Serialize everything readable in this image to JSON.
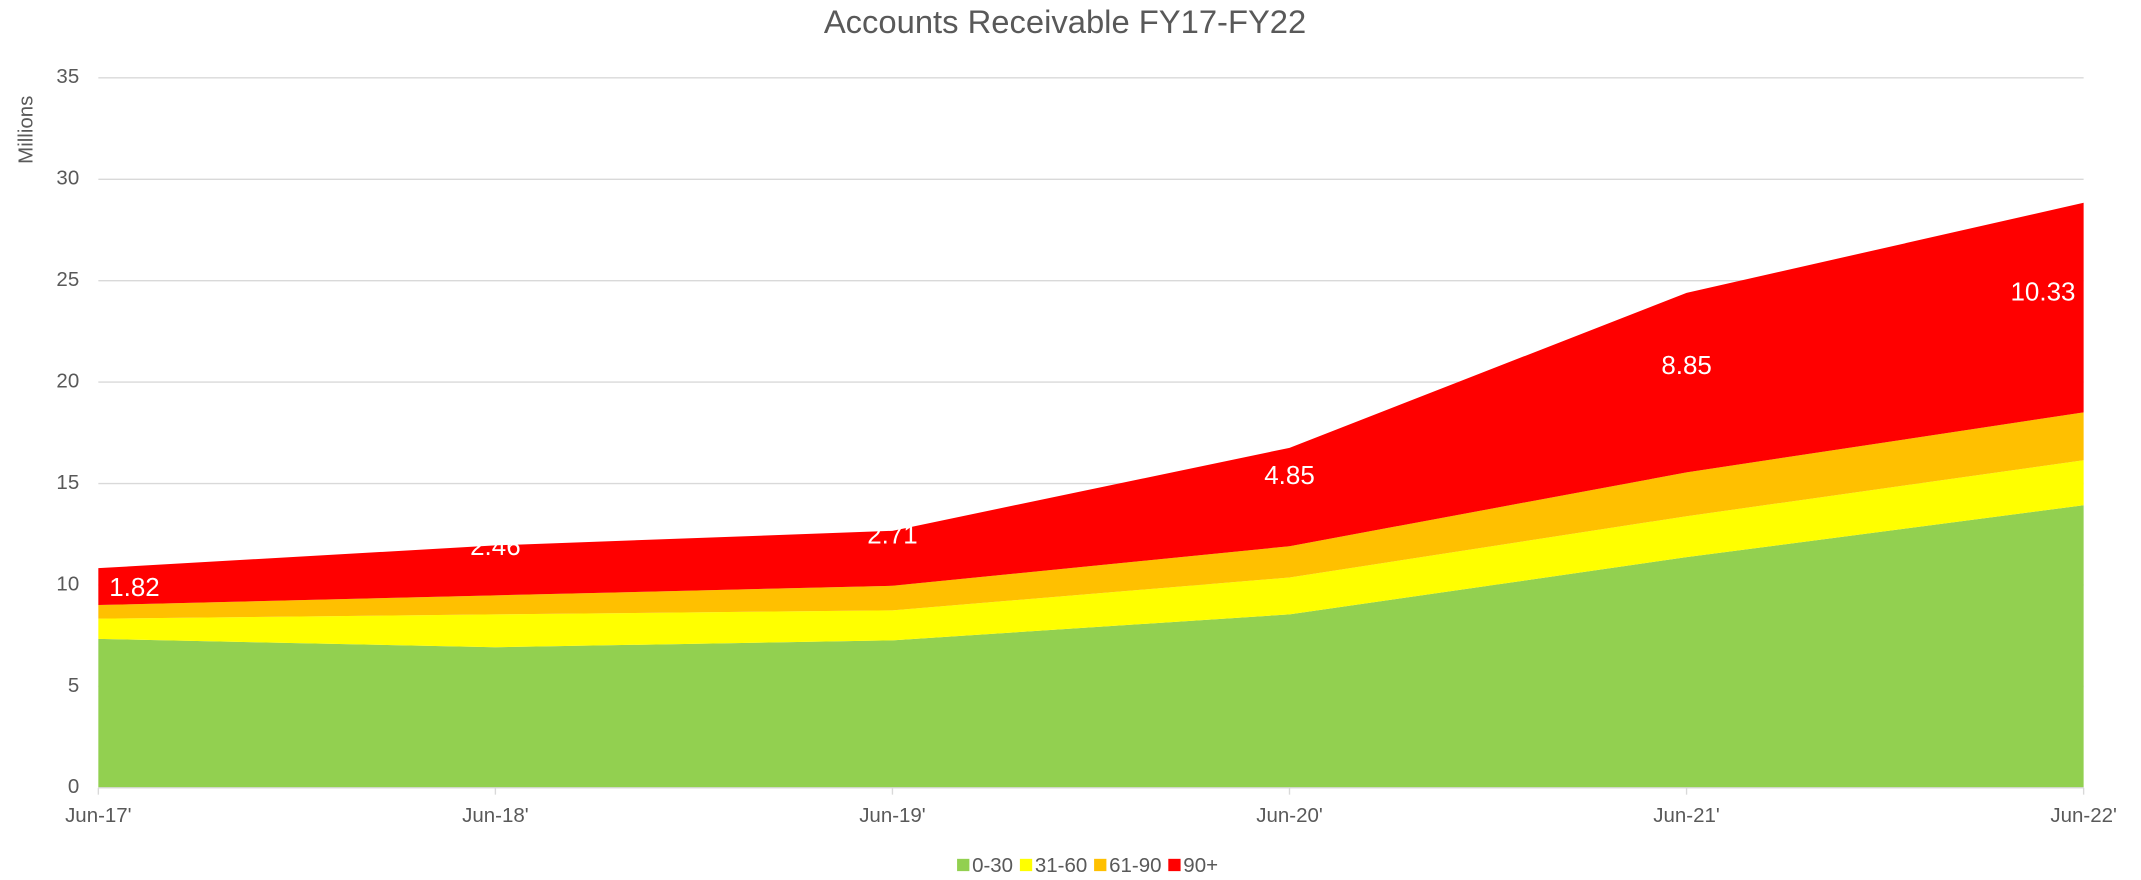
{
  "chart_data": {
    "type": "stacked_area",
    "title": "Accounts Receivable FY17-FY22",
    "y_label": "Millions",
    "categories": [
      "Jun-17'",
      "Jun-18'",
      "Jun-19'",
      "Jun-20'",
      "Jun-21'",
      "Jun-22'"
    ],
    "series": [
      {
        "name": "0-30",
        "color": "#92d050",
        "values": [
          7.34,
          6.93,
          7.27,
          8.55,
          11.37,
          13.93
        ]
      },
      {
        "name": "31-60",
        "color": "#ffff00",
        "values": [
          1.0,
          1.62,
          1.48,
          1.82,
          2.02,
          2.22
        ]
      },
      {
        "name": "61-90",
        "color": "#ffc000",
        "values": [
          0.67,
          0.94,
          1.21,
          1.54,
          2.16,
          2.36
        ]
      },
      {
        "name": "90+",
        "color": "#ff0000",
        "values": [
          1.82,
          2.46,
          2.71,
          4.85,
          8.85,
          10.33
        ],
        "data_labels": true
      }
    ],
    "ylim": [
      0,
      35
    ],
    "yticks": [
      0,
      5,
      10,
      15,
      20,
      25,
      30,
      35
    ],
    "grid": true,
    "legend": "bottom"
  }
}
